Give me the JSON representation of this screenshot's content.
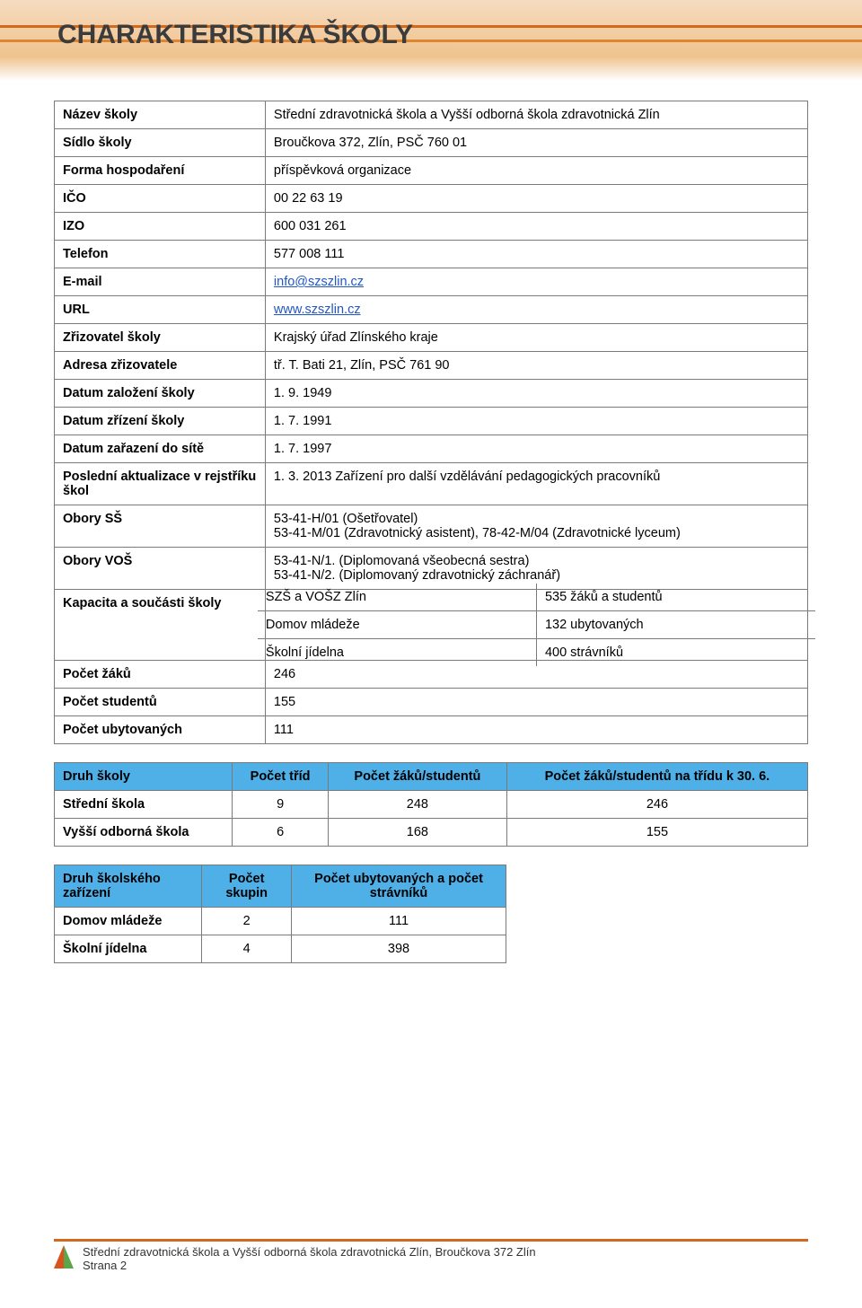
{
  "header": {
    "title": "CHARAKTERISTIKA ŠKOLY"
  },
  "info": {
    "rows": [
      {
        "label": "Název školy",
        "value": "Střední zdravotnická škola a Vyšší odborná škola zdravotnická Zlín"
      },
      {
        "label": "Sídlo školy",
        "value": "Broučkova 372, Zlín, PSČ 760 01"
      },
      {
        "label": "Forma hospodaření",
        "value": "příspěvková organizace"
      },
      {
        "label": "IČO",
        "value": "00 22 63 19"
      },
      {
        "label": "IZO",
        "value": "600 031 261"
      },
      {
        "label": "Telefon",
        "value": "577 008 111"
      }
    ],
    "email": {
      "label": "E-mail",
      "value": "info@szszlin.cz"
    },
    "url": {
      "label": "URL",
      "value": "www.szszlin.cz"
    },
    "rows2": [
      {
        "label": "Zřizovatel školy",
        "value": "Krajský úřad Zlínského kraje"
      },
      {
        "label": "Adresa zřizovatele",
        "value": "tř. T. Bati 21, Zlín, PSČ 761 90"
      },
      {
        "label": "Datum založení školy",
        "value": "1. 9. 1949"
      },
      {
        "label": "Datum zřízení školy",
        "value": "1. 7. 1991"
      },
      {
        "label": "Datum zařazení do sítě",
        "value": "1. 7. 1997"
      },
      {
        "label": "Poslední aktualizace v rejstříku škol",
        "value": "1. 3. 2013 Zařízení pro další vzdělávání pedagogických pracovníků"
      }
    ],
    "obory_ss": {
      "label": "Obory SŠ",
      "line1": "53-41-H/01 (Ošetřovatel)",
      "line2": "53-41-M/01 (Zdravotnický asistent), 78-42-M/04 (Zdravotnické lyceum)"
    },
    "obory_vos": {
      "label": "Obory VOŠ",
      "line1": "53-41-N/1. (Diplomovaná všeobecná sestra)",
      "line2": "53-41-N/2. (Diplomovaný zdravotnický záchranář)"
    },
    "kapacita": {
      "label": "Kapacita a součásti školy",
      "items": [
        {
          "name": "SZŠ a VOŠZ Zlín",
          "value": "535 žáků a studentů"
        },
        {
          "name": "Domov mládeže",
          "value": "132 ubytovaných"
        },
        {
          "name": "Školní jídelna",
          "value": "400 strávníků"
        }
      ]
    },
    "rows3": [
      {
        "label": "Počet žáků",
        "value": "246"
      },
      {
        "label": "Počet studentů",
        "value": "155"
      },
      {
        "label": "Počet ubytovaných",
        "value": "111"
      }
    ]
  },
  "table_druh_skoly": {
    "headers": [
      "Druh školy",
      "Počet tříd",
      "Počet žáků/studentů",
      "Počet žáků/studentů na třídu k 30. 6."
    ],
    "rows": [
      [
        "Střední škola",
        "9",
        "248",
        "246"
      ],
      [
        "Vyšší odborná škola",
        "6",
        "168",
        "155"
      ]
    ]
  },
  "table_zarizeni": {
    "headers": [
      "Druh školského zařízení",
      "Počet skupin",
      "Počet ubytovaných a počet strávníků"
    ],
    "rows": [
      [
        "Domov mládeže",
        "2",
        "111"
      ],
      [
        "Školní jídelna",
        "4",
        "398"
      ]
    ]
  },
  "footer": {
    "line1": "Střední zdravotnická škola a Vyšší odborná škola zdravotnická Zlín, Broučkova 372 Zlín",
    "line2": "Strana 2"
  },
  "styling": {
    "header_bg_gradient": [
      "#f5dcc0",
      "#f2cba0",
      "#eec38e",
      "#ffffff"
    ],
    "accent_orange": "#d26a1e",
    "table_border": "#7a7a7a",
    "link_color": "#2156c4",
    "blue_header_bg": "#4fb0e8",
    "body_font": "Arial",
    "title_fontsize_pt": 22,
    "body_fontsize_pt": 11
  }
}
